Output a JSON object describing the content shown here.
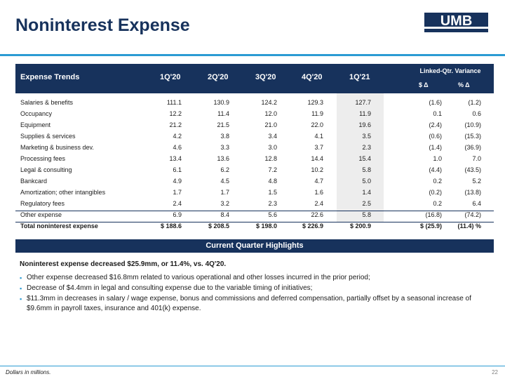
{
  "slide": {
    "title": "Noninterest Expense",
    "logo_text": "UMB",
    "footnote": "Dollars in millions.",
    "page_number": "22"
  },
  "colors": {
    "navy": "#17325c",
    "accent": "#2b9bd3",
    "shade": "#ededed"
  },
  "table": {
    "header": {
      "label": "Expense Trends",
      "periods": [
        "1Q'20",
        "2Q'20",
        "3Q'20",
        "4Q'20",
        "1Q'21"
      ],
      "linked_title": "Linked-Qtr. Variance",
      "dollar_change": "$ Δ",
      "pct_change": "% Δ"
    },
    "rows": [
      {
        "label": "Salaries & benefits",
        "values": [
          "111.1",
          "130.9",
          "124.2",
          "129.3",
          "127.7"
        ],
        "dollar": "(1.6)",
        "pct": "(1.2)"
      },
      {
        "label": "Occupancy",
        "values": [
          "12.2",
          "11.4",
          "12.0",
          "11.9",
          "11.9"
        ],
        "dollar": "0.1",
        "pct": "0.6"
      },
      {
        "label": "Equipment",
        "values": [
          "21.2",
          "21.5",
          "21.0",
          "22.0",
          "19.6"
        ],
        "dollar": "(2.4)",
        "pct": "(10.9)"
      },
      {
        "label": "Supplies & services",
        "values": [
          "4.2",
          "3.8",
          "3.4",
          "4.1",
          "3.5"
        ],
        "dollar": "(0.6)",
        "pct": "(15.3)"
      },
      {
        "label": "Marketing & business dev.",
        "values": [
          "4.6",
          "3.3",
          "3.0",
          "3.7",
          "2.3"
        ],
        "dollar": "(1.4)",
        "pct": "(36.9)"
      },
      {
        "label": "Processing fees",
        "values": [
          "13.4",
          "13.6",
          "12.8",
          "14.4",
          "15.4"
        ],
        "dollar": "1.0",
        "pct": "7.0"
      },
      {
        "label": "Legal & consulting",
        "values": [
          "6.1",
          "6.2",
          "7.2",
          "10.2",
          "5.8"
        ],
        "dollar": "(4.4)",
        "pct": "(43.5)"
      },
      {
        "label": "Bankcard",
        "values": [
          "4.9",
          "4.5",
          "4.8",
          "4.7",
          "5.0"
        ],
        "dollar": "0.2",
        "pct": "5.2"
      },
      {
        "label": "Amortization; other intangibles",
        "values": [
          "1.7",
          "1.7",
          "1.5",
          "1.6",
          "1.4"
        ],
        "dollar": "(0.2)",
        "pct": "(13.8)"
      },
      {
        "label": "Regulatory fees",
        "values": [
          "2.4",
          "3.2",
          "2.3",
          "2.4",
          "2.5"
        ],
        "dollar": "0.2",
        "pct": "6.4"
      },
      {
        "label": "Other expense",
        "values": [
          "6.9",
          "8.4",
          "5.6",
          "22.6",
          "5.8"
        ],
        "dollar": "(16.8)",
        "pct": "(74.2)"
      }
    ],
    "total": {
      "label": "Total noninterest expense",
      "values": [
        "$ 188.6",
        "$ 208.5",
        "$ 198.0",
        "$ 226.9",
        "$ 200.9"
      ],
      "dollar": "$ (25.9)",
      "pct": "(11.4) %"
    }
  },
  "highlights": {
    "header": "Current Quarter Highlights",
    "summary": "Noninterest expense decreased $25.9mm, or 11.4%, vs. 4Q'20.",
    "bullets": [
      "Other expense decreased $16.8mm related to various operational and other losses incurred in the prior period;",
      "Decrease of $4.4mm in legal and consulting expense due to the variable timing of initiatives;",
      "$11.3mm in decreases in salary / wage expense, bonus and commissions and deferred compensation, partially offset by a seasonal increase of $9.6mm in payroll taxes, insurance and 401(k) expense."
    ]
  }
}
